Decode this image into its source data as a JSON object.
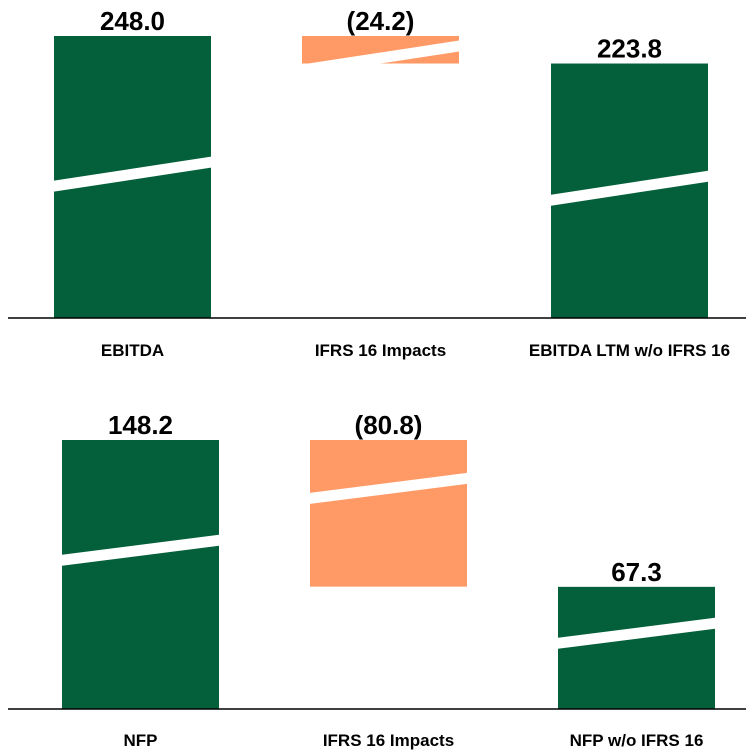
{
  "colors": {
    "total": "#04603A",
    "impact": "#FF9A66",
    "break_line": "#FFFFFF",
    "axis": "#000000"
  },
  "chart_data": [
    {
      "type": "bar",
      "subtype": "waterfall",
      "axis_broken": true,
      "ylim": [
        0,
        248.0
      ],
      "grid": false,
      "categories": [
        "EBITDA",
        "IFRS 16 Impacts",
        "EBITDA LTM w/o IFRS 16"
      ],
      "values": [
        248.0,
        -24.2,
        223.8
      ],
      "labels": [
        "248.0",
        "(24.2)",
        "223.8"
      ],
      "kinds": [
        "total",
        "impact",
        "total"
      ]
    },
    {
      "type": "bar",
      "subtype": "waterfall",
      "axis_broken": true,
      "ylim": [
        0,
        148.2
      ],
      "grid": false,
      "categories": [
        "NFP",
        "IFRS 16 Impacts",
        "NFP w/o IFRS 16"
      ],
      "values": [
        148.2,
        -80.8,
        67.3
      ],
      "labels": [
        "148.2",
        "(80.8)",
        "67.3"
      ],
      "kinds": [
        "total",
        "impact",
        "total"
      ]
    }
  ]
}
